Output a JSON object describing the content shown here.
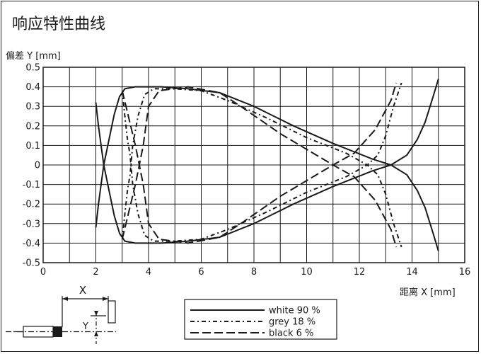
{
  "title": "响应特性曲线",
  "chart_data": {
    "type": "line",
    "title": "响应特性曲线",
    "xlabel": "距离 X [mm]",
    "ylabel": "偏差 Y [mm]",
    "xlim": [
      0,
      16
    ],
    "ylim": [
      -0.5,
      0.5
    ],
    "xticks": [
      "0",
      "2",
      "4",
      "6",
      "8",
      "10",
      "12",
      "14",
      "16"
    ],
    "yticks": [
      "0.5",
      "0.4",
      "0.3",
      "0.2",
      "0.1",
      "0",
      "-0.1",
      "-0.2",
      "-0.3",
      "-0.4",
      "-0.5"
    ],
    "grid": true,
    "legend_position": "bottom-center",
    "series": [
      {
        "name": "white 90 %",
        "dash": "solid",
        "points": [
          [
            2.0,
            0.32
          ],
          [
            2.1,
            0.2
          ],
          [
            2.2,
            0.1
          ],
          [
            2.3,
            0.0
          ],
          [
            2.5,
            -0.13
          ],
          [
            2.7,
            -0.26
          ],
          [
            2.9,
            -0.35
          ],
          [
            3.1,
            -0.39
          ],
          [
            3.5,
            -0.4
          ],
          [
            4.5,
            -0.4
          ],
          [
            5.5,
            -0.39
          ],
          [
            6.7,
            -0.37
          ],
          [
            8.0,
            -0.3
          ],
          [
            9.5,
            -0.2
          ],
          [
            11.0,
            -0.11
          ],
          [
            12.5,
            -0.03
          ],
          [
            13.2,
            0.0
          ],
          [
            13.8,
            0.05
          ],
          [
            14.2,
            0.13
          ],
          [
            14.5,
            0.22
          ],
          [
            14.8,
            0.35
          ],
          [
            15.0,
            0.44
          ]
        ]
      },
      {
        "name": "white 90 %",
        "dash": "solid",
        "points": [
          [
            2.0,
            -0.32
          ],
          [
            2.1,
            -0.2
          ],
          [
            2.2,
            -0.1
          ],
          [
            2.3,
            0.0
          ],
          [
            2.5,
            0.13
          ],
          [
            2.7,
            0.26
          ],
          [
            2.9,
            0.35
          ],
          [
            3.1,
            0.39
          ],
          [
            3.5,
            0.4
          ],
          [
            4.5,
            0.4
          ],
          [
            5.5,
            0.39
          ],
          [
            6.7,
            0.37
          ],
          [
            8.0,
            0.3
          ],
          [
            9.5,
            0.2
          ],
          [
            11.0,
            0.11
          ],
          [
            12.5,
            0.03
          ],
          [
            13.2,
            0.0
          ],
          [
            13.8,
            -0.05
          ],
          [
            14.2,
            -0.13
          ],
          [
            14.5,
            -0.22
          ],
          [
            14.8,
            -0.35
          ],
          [
            15.0,
            -0.44
          ]
        ]
      },
      {
        "name": "grey 18 %",
        "dash": "6 4 2 4",
        "points": [
          [
            3.0,
            0.38
          ],
          [
            3.1,
            0.25
          ],
          [
            3.2,
            0.13
          ],
          [
            3.3,
            0.05
          ],
          [
            3.4,
            -0.1
          ],
          [
            3.6,
            -0.25
          ],
          [
            3.85,
            -0.36
          ],
          [
            4.2,
            -0.39
          ],
          [
            5.0,
            -0.39
          ],
          [
            6.0,
            -0.38
          ],
          [
            7.0,
            -0.33
          ],
          [
            8.5,
            -0.24
          ],
          [
            10.0,
            -0.14
          ],
          [
            11.5,
            -0.06
          ],
          [
            12.3,
            0.0
          ],
          [
            12.7,
            0.05
          ],
          [
            13.0,
            0.15
          ],
          [
            13.3,
            0.3
          ],
          [
            13.6,
            0.42
          ]
        ]
      },
      {
        "name": "grey 18 %",
        "dash": "6 4 2 4",
        "points": [
          [
            3.0,
            -0.38
          ],
          [
            3.1,
            -0.25
          ],
          [
            3.2,
            -0.13
          ],
          [
            3.3,
            -0.05
          ],
          [
            3.4,
            0.1
          ],
          [
            3.6,
            0.25
          ],
          [
            3.85,
            0.36
          ],
          [
            4.2,
            0.39
          ],
          [
            5.0,
            0.39
          ],
          [
            6.0,
            0.38
          ],
          [
            7.0,
            0.33
          ],
          [
            8.5,
            0.24
          ],
          [
            10.0,
            0.14
          ],
          [
            11.5,
            0.06
          ],
          [
            12.3,
            0.0
          ],
          [
            12.7,
            -0.05
          ],
          [
            13.0,
            -0.15
          ],
          [
            13.3,
            -0.3
          ],
          [
            13.6,
            -0.42
          ]
        ]
      },
      {
        "name": "black 6 %",
        "dash": "12 5",
        "points": [
          [
            3.0,
            0.38
          ],
          [
            3.5,
            0.1
          ],
          [
            3.8,
            -0.1
          ],
          [
            4.0,
            -0.3
          ],
          [
            4.4,
            -0.38
          ],
          [
            5.5,
            -0.4
          ],
          [
            6.7,
            -0.37
          ],
          [
            7.5,
            -0.3
          ],
          [
            9.0,
            -0.16
          ],
          [
            10.0,
            -0.08
          ],
          [
            11.0,
            0.0
          ],
          [
            11.8,
            0.06
          ],
          [
            12.6,
            0.18
          ],
          [
            13.2,
            0.33
          ],
          [
            13.4,
            0.42
          ]
        ]
      },
      {
        "name": "black 6 %",
        "dash": "12 5",
        "points": [
          [
            3.0,
            -0.38
          ],
          [
            3.5,
            -0.1
          ],
          [
            3.8,
            0.1
          ],
          [
            4.0,
            0.3
          ],
          [
            4.4,
            0.38
          ],
          [
            5.5,
            0.4
          ],
          [
            6.7,
            0.37
          ],
          [
            7.5,
            0.3
          ],
          [
            9.0,
            0.16
          ],
          [
            10.0,
            0.08
          ],
          [
            11.0,
            0.0
          ],
          [
            11.8,
            -0.06
          ],
          [
            12.6,
            -0.18
          ],
          [
            13.2,
            -0.33
          ],
          [
            13.4,
            -0.42
          ]
        ]
      }
    ]
  },
  "legend": [
    {
      "label": "white 90 %",
      "dash": "solid"
    },
    {
      "label": "grey 18 %",
      "dash": "6 4 2 4"
    },
    {
      "label": "black 6 %",
      "dash": "12 5"
    }
  ],
  "schematic": {
    "x_label": "X",
    "y_label": "Y"
  }
}
